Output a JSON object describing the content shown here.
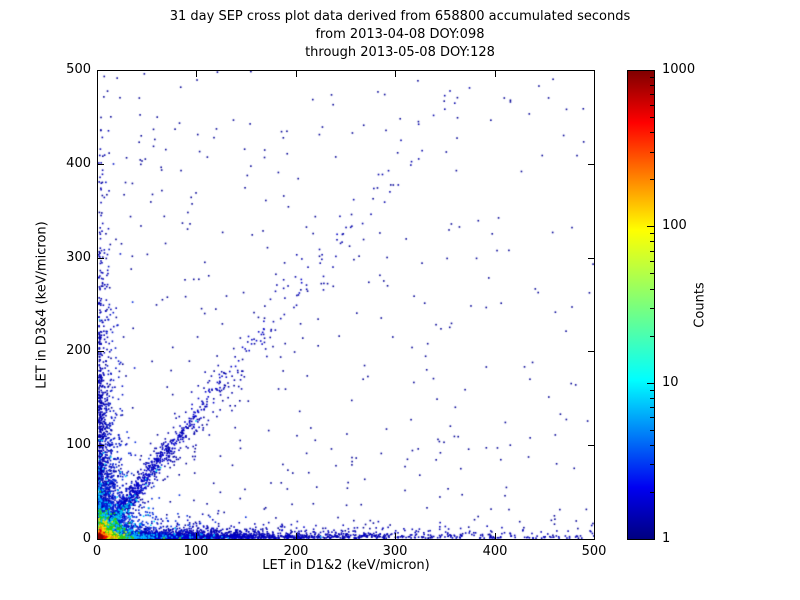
{
  "chart_data": {
    "type": "scatter",
    "title_lines": [
      "31 day SEP cross plot data derived from 658800 accumulated seconds",
      "from 2013-04-08 DOY:098",
      "through 2013-05-08 DOY:128"
    ],
    "xlabel": "LET in D1&2 (keV/micron)",
    "ylabel": "LET in D3&4 (keV/micron)",
    "xlim": [
      0,
      500
    ],
    "ylim": [
      0,
      500
    ],
    "xticks": [
      0,
      100,
      200,
      300,
      400,
      500
    ],
    "yticks": [
      0,
      100,
      200,
      300,
      400,
      500
    ],
    "grid": false,
    "background": "#ffffff",
    "axis_color": "#000000",
    "colorbar": {
      "label": "Counts",
      "scale": "log",
      "min": 1,
      "max": 1000,
      "ticks": [
        1,
        10,
        100,
        1000
      ],
      "colormap": "jet",
      "stops": [
        {
          "color": "#000080",
          "pos": 0
        },
        {
          "color": "#0000f1",
          "pos": 11
        },
        {
          "color": "#00ffff",
          "pos": 34
        },
        {
          "color": "#7dff7a",
          "pos": 50
        },
        {
          "color": "#ffff00",
          "pos": 66
        },
        {
          "color": "#ff0000",
          "pos": 89
        },
        {
          "color": "#800000",
          "pos": 100
        }
      ]
    },
    "density_model": {
      "seed": 42,
      "point_size": 1.6,
      "clusters": [
        {
          "name": "bottom-band",
          "n": 2200,
          "color": "#0000b4",
          "x": {
            "dist": "exp",
            "scale": 120
          },
          "y": {
            "dist": "exp",
            "scale": 3.5
          }
        },
        {
          "name": "bottom-band-dense",
          "n": 1500,
          "color": "#0000cd",
          "x": {
            "dist": "exp",
            "scale": 40
          },
          "y": {
            "dist": "exp",
            "scale": 2
          }
        },
        {
          "name": "left-band",
          "n": 1100,
          "color": "#0000b4",
          "x": {
            "dist": "exp",
            "scale": 3.5
          },
          "y": {
            "dist": "exp",
            "scale": 90
          }
        },
        {
          "name": "origin-fan",
          "n": 520,
          "color": "#0010c8",
          "x": {
            "dist": "absgauss",
            "mu": 6,
            "sigma": 10
          },
          "y": {
            "dist": "exp",
            "scale": 55
          }
        },
        {
          "name": "diagonal-dense",
          "n": 900,
          "color": "#0000c8",
          "x": {
            "dist": "exp",
            "scale": 35
          },
          "y": {
            "dist": "linked",
            "slope": 1.35,
            "noise": 6
          }
        },
        {
          "name": "diagonal-sparse",
          "n": 360,
          "color": "#0000aa",
          "x": {
            "dist": "exp",
            "scale": 110
          },
          "y": {
            "dist": "linked",
            "slope": 1.3,
            "noise": 16
          }
        },
        {
          "name": "field-scatter",
          "n": 430,
          "color": "#000096",
          "x": {
            "dist": "pow",
            "max": 500,
            "p": 1.6
          },
          "y": {
            "dist": "pow",
            "max": 500,
            "p": 1.6
          }
        },
        {
          "name": "far-scatter",
          "n": 70,
          "color": "#000096",
          "x": {
            "dist": "uniform",
            "min": 0,
            "max": 500
          },
          "y": {
            "dist": "uniform",
            "min": 0,
            "max": 500
          }
        },
        {
          "name": "origin-blue-halo",
          "n": 800,
          "color": "#0028dc",
          "x": {
            "dist": "exp",
            "scale": 20
          },
          "y": {
            "dist": "exp",
            "scale": 20
          }
        },
        {
          "name": "origin-cyan",
          "n": 650,
          "color": "#00d2ff",
          "x": {
            "dist": "exp",
            "scale": 11
          },
          "y": {
            "dist": "exp",
            "scale": 11
          }
        },
        {
          "name": "bottom-cyan",
          "n": 220,
          "color": "#00b4ff",
          "x": {
            "dist": "exp",
            "scale": 30
          },
          "y": {
            "dist": "exp",
            "scale": 1.5
          }
        },
        {
          "name": "left-cyan",
          "n": 150,
          "color": "#00b4ff",
          "x": {
            "dist": "exp",
            "scale": 1.8
          },
          "y": {
            "dist": "exp",
            "scale": 28
          }
        },
        {
          "name": "diag-cyan",
          "n": 140,
          "color": "#00c8f0",
          "x": {
            "dist": "exp",
            "scale": 14
          },
          "y": {
            "dist": "linked",
            "slope": 1.25,
            "noise": 2.5
          }
        },
        {
          "name": "origin-green",
          "n": 480,
          "color": "#2ed200",
          "x": {
            "dist": "exp",
            "scale": 6.5
          },
          "y": {
            "dist": "exp",
            "scale": 6.5
          }
        },
        {
          "name": "bottom-green",
          "n": 90,
          "color": "#46c800",
          "x": {
            "dist": "exp",
            "scale": 12
          },
          "y": {
            "dist": "exp",
            "scale": 1.2
          }
        },
        {
          "name": "origin-yellow",
          "n": 280,
          "color": "#ffe100",
          "x": {
            "dist": "exp",
            "scale": 4.2
          },
          "y": {
            "dist": "exp",
            "scale": 4.2
          }
        },
        {
          "name": "origin-orange",
          "n": 160,
          "color": "#ff8c00",
          "x": {
            "dist": "exp",
            "scale": 2.8
          },
          "y": {
            "dist": "exp",
            "scale": 2.8
          }
        },
        {
          "name": "origin-red",
          "n": 100,
          "color": "#e60000",
          "x": {
            "dist": "exp",
            "scale": 1.8
          },
          "y": {
            "dist": "exp",
            "scale": 1.8
          }
        },
        {
          "name": "origin-darkred",
          "n": 50,
          "color": "#8c0000",
          "x": {
            "dist": "exp",
            "scale": 1.1
          },
          "y": {
            "dist": "exp",
            "scale": 1.1
          }
        }
      ]
    }
  }
}
